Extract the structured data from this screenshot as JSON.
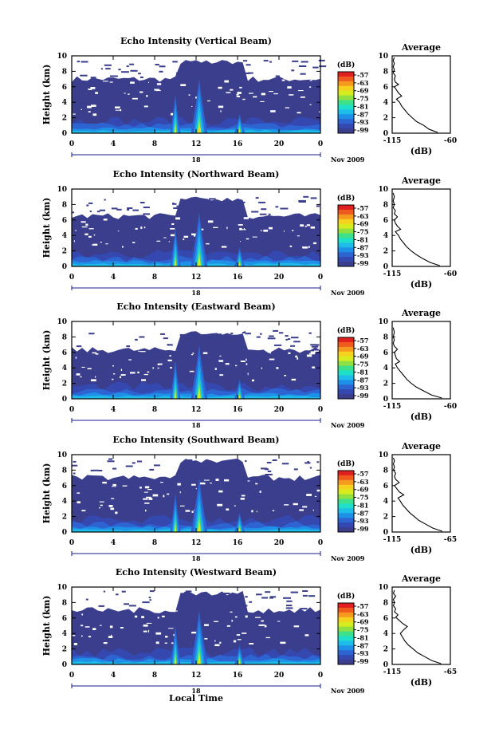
{
  "chart_data": {
    "type": "heatmap",
    "xlabel": "Local Time",
    "ylabel": "Height (km)",
    "x_range": [
      0,
      24
    ],
    "x_ticks": [
      "0",
      "4",
      "8",
      "12",
      "16",
      "20",
      "0"
    ],
    "y_range": [
      0,
      10
    ],
    "y_ticks": [
      "0",
      "2",
      "4",
      "6",
      "8",
      "10"
    ],
    "date_day": "18",
    "date_month": "Nov 2009",
    "colorbar": {
      "unit": "(dB)",
      "ticks": [
        "-57",
        "-63",
        "-69",
        "-75",
        "-81",
        "-87",
        "-93",
        "-99"
      ],
      "colors": [
        "#e02020",
        "#f05a1e",
        "#f59a1e",
        "#f5d21e",
        "#d6ec1e",
        "#8fe040",
        "#3ee08c",
        "#1ee0c8",
        "#1ebce8",
        "#1e90e8",
        "#2e64d2",
        "#3448b0",
        "#3a3e8c"
      ]
    },
    "panels": [
      {
        "title": "Echo Intensity (Vertical Beam)",
        "average_title": "Average",
        "average_xlabel": "(dB)",
        "average_xticks": [
          "-115",
          "-60"
        ],
        "average_xlim": [
          -115,
          -60
        ],
        "average_profile": [
          [
            -72,
            0.1
          ],
          [
            -80,
            0.5
          ],
          [
            -85,
            1
          ],
          [
            -92,
            1.5
          ],
          [
            -96,
            2
          ],
          [
            -100,
            2.5
          ],
          [
            -103,
            3
          ],
          [
            -106,
            3.5
          ],
          [
            -108,
            4
          ],
          [
            -111,
            4.4
          ],
          [
            -106,
            4.8
          ],
          [
            -109,
            5.2
          ],
          [
            -111,
            5.6
          ],
          [
            -113,
            6
          ],
          [
            -109,
            6.3
          ],
          [
            -112,
            6.6
          ],
          [
            -113,
            7
          ],
          [
            -112,
            7.4
          ],
          [
            -114,
            7.8
          ],
          [
            -113,
            8.2
          ],
          [
            -114,
            8.6
          ],
          [
            -113,
            9
          ],
          [
            -114,
            9.4
          ],
          [
            -113,
            9.8
          ]
        ],
        "echo_top_km": 7.0,
        "plume_times": [
          10.0,
          12.3,
          16.2
        ]
      },
      {
        "title": "Echo Intensity (Northward Beam)",
        "average_title": "Average",
        "average_xlabel": "(dB)",
        "average_xticks": [
          "-115",
          "-60"
        ],
        "average_xlim": [
          -115,
          -60
        ],
        "average_profile": [
          [
            -70,
            0.1
          ],
          [
            -79,
            0.5
          ],
          [
            -86,
            1
          ],
          [
            -92,
            1.5
          ],
          [
            -97,
            2
          ],
          [
            -101,
            2.5
          ],
          [
            -104,
            3
          ],
          [
            -107,
            3.5
          ],
          [
            -109,
            4
          ],
          [
            -112,
            4.5
          ],
          [
            -107,
            4.8
          ],
          [
            -110,
            5.2
          ],
          [
            -112,
            5.6
          ],
          [
            -113,
            6
          ],
          [
            -110,
            6.4
          ],
          [
            -113,
            6.8
          ],
          [
            -112,
            7.2
          ],
          [
            -114,
            7.6
          ],
          [
            -113,
            8
          ],
          [
            -114,
            8.5
          ],
          [
            -113,
            9
          ],
          [
            -114,
            9.5
          ]
        ],
        "echo_top_km": 6.5,
        "plume_times": [
          10.0,
          12.3,
          16.2
        ]
      },
      {
        "title": "Echo Intensity (Eastward Beam)",
        "average_title": "Average",
        "average_xlabel": "(dB)",
        "average_xticks": [
          "-115",
          "-60"
        ],
        "average_xlim": [
          -115,
          -60
        ],
        "average_profile": [
          [
            -68,
            0.1
          ],
          [
            -78,
            0.5
          ],
          [
            -85,
            1
          ],
          [
            -92,
            1.5
          ],
          [
            -97,
            2
          ],
          [
            -101,
            2.5
          ],
          [
            -104,
            3
          ],
          [
            -107,
            3.5
          ],
          [
            -110,
            4
          ],
          [
            -112,
            4.5
          ],
          [
            -108,
            4.8
          ],
          [
            -111,
            5.2
          ],
          [
            -112,
            5.6
          ],
          [
            -113,
            6
          ],
          [
            -110,
            6.4
          ],
          [
            -113,
            6.8
          ],
          [
            -114,
            7.2
          ],
          [
            -113,
            7.6
          ],
          [
            -114,
            8
          ],
          [
            -113,
            8.6
          ],
          [
            -114,
            9.2
          ]
        ],
        "echo_top_km": 6.3,
        "plume_times": [
          10.0,
          12.3,
          16.2
        ]
      },
      {
        "title": "Echo Intensity (Southward Beam)",
        "average_title": "Average",
        "average_xlabel": "(dB)",
        "average_xticks": [
          "-115",
          "-65"
        ],
        "average_xlim": [
          -115,
          -65
        ],
        "average_profile": [
          [
            -72,
            0.1
          ],
          [
            -80,
            0.5
          ],
          [
            -86,
            1
          ],
          [
            -92,
            1.5
          ],
          [
            -96,
            2
          ],
          [
            -100,
            2.5
          ],
          [
            -103,
            3
          ],
          [
            -106,
            3.5
          ],
          [
            -108,
            4
          ],
          [
            -110,
            4.4
          ],
          [
            -105,
            4.8
          ],
          [
            -109,
            5.2
          ],
          [
            -111,
            5.6
          ],
          [
            -113,
            6
          ],
          [
            -109,
            6.4
          ],
          [
            -112,
            6.8
          ],
          [
            -113,
            7.2
          ],
          [
            -112,
            7.6
          ],
          [
            -114,
            8
          ],
          [
            -113,
            8.4
          ],
          [
            -114,
            8.8
          ],
          [
            -113,
            9.2
          ],
          [
            -114,
            9.6
          ]
        ],
        "echo_top_km": 7.0,
        "plume_times": [
          10.0,
          12.3,
          16.2
        ]
      },
      {
        "title": "Echo Intensity (Westward Beam)",
        "average_title": "Average",
        "average_xlabel": "(dB)",
        "average_xticks": [
          "-115",
          "-65"
        ],
        "average_xlim": [
          -115,
          -65
        ],
        "average_profile": [
          [
            -73,
            0.1
          ],
          [
            -81,
            0.5
          ],
          [
            -87,
            1
          ],
          [
            -93,
            1.5
          ],
          [
            -97,
            2
          ],
          [
            -101,
            2.5
          ],
          [
            -104,
            3
          ],
          [
            -106,
            3.5
          ],
          [
            -108,
            4
          ],
          [
            -105,
            4.5
          ],
          [
            -102,
            4.9
          ],
          [
            -106,
            5.3
          ],
          [
            -109,
            5.7
          ],
          [
            -112,
            6.1
          ],
          [
            -110,
            6.4
          ],
          [
            -113,
            6.8
          ],
          [
            -112,
            7.2
          ],
          [
            -114,
            7.6
          ],
          [
            -113,
            8
          ],
          [
            -114,
            8.4
          ],
          [
            -112,
            8.8
          ],
          [
            -114,
            9.2
          ],
          [
            -113,
            9.6
          ]
        ],
        "echo_top_km": 7.0,
        "plume_times": [
          10.0,
          12.3,
          16.2
        ]
      }
    ]
  }
}
